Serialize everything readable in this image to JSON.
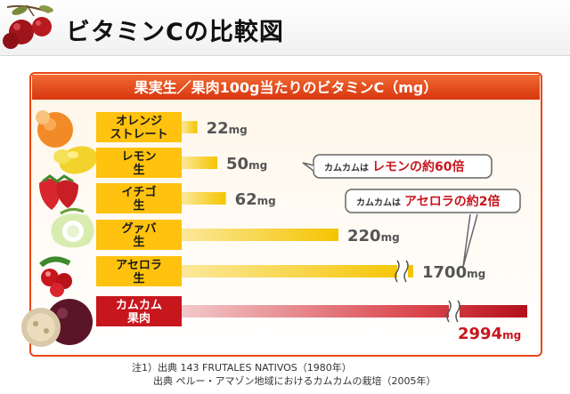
{
  "page_title": "ビタミンCの比較図",
  "chart_data": {
    "type": "bar",
    "title": "果実生／果肉100g当たりのビタミンC（mg）",
    "unit": "mg",
    "categories": [
      {
        "lines": [
          "オレンジ",
          "ストレート"
        ]
      },
      {
        "lines": [
          "レモン",
          "生"
        ]
      },
      {
        "lines": [
          "イチゴ",
          "生"
        ]
      },
      {
        "lines": [
          "グァバ",
          "生"
        ]
      },
      {
        "lines": [
          "アセロラ",
          "生"
        ]
      },
      {
        "lines": [
          "カムカム",
          "果肉"
        ]
      }
    ],
    "values": [
      22,
      50,
      62,
      220,
      1700,
      2994
    ],
    "value_labels": [
      "22",
      "50",
      "62",
      "220",
      "1700",
      "2994"
    ],
    "axis_breaks": [
      false,
      false,
      false,
      false,
      true,
      true
    ],
    "highlight_index": 5,
    "colors": {
      "bar": "#f5c400",
      "highlight": "#c8161d",
      "header_band": "#e8461a",
      "label_box": "#ffc20e"
    },
    "callouts": [
      {
        "prefix": "カムカムは",
        "text": "レモンの約60倍",
        "target": 1
      },
      {
        "prefix": "カムカムは",
        "text": "アセロラの約2倍",
        "target": 4
      }
    ]
  },
  "footnote": {
    "line1": "注1）出典 143 FRUTALES NATIVOS（1980年）",
    "line2": "出典 ペルー・アマゾン地域におけるカムカムの栽培（2005年）"
  }
}
